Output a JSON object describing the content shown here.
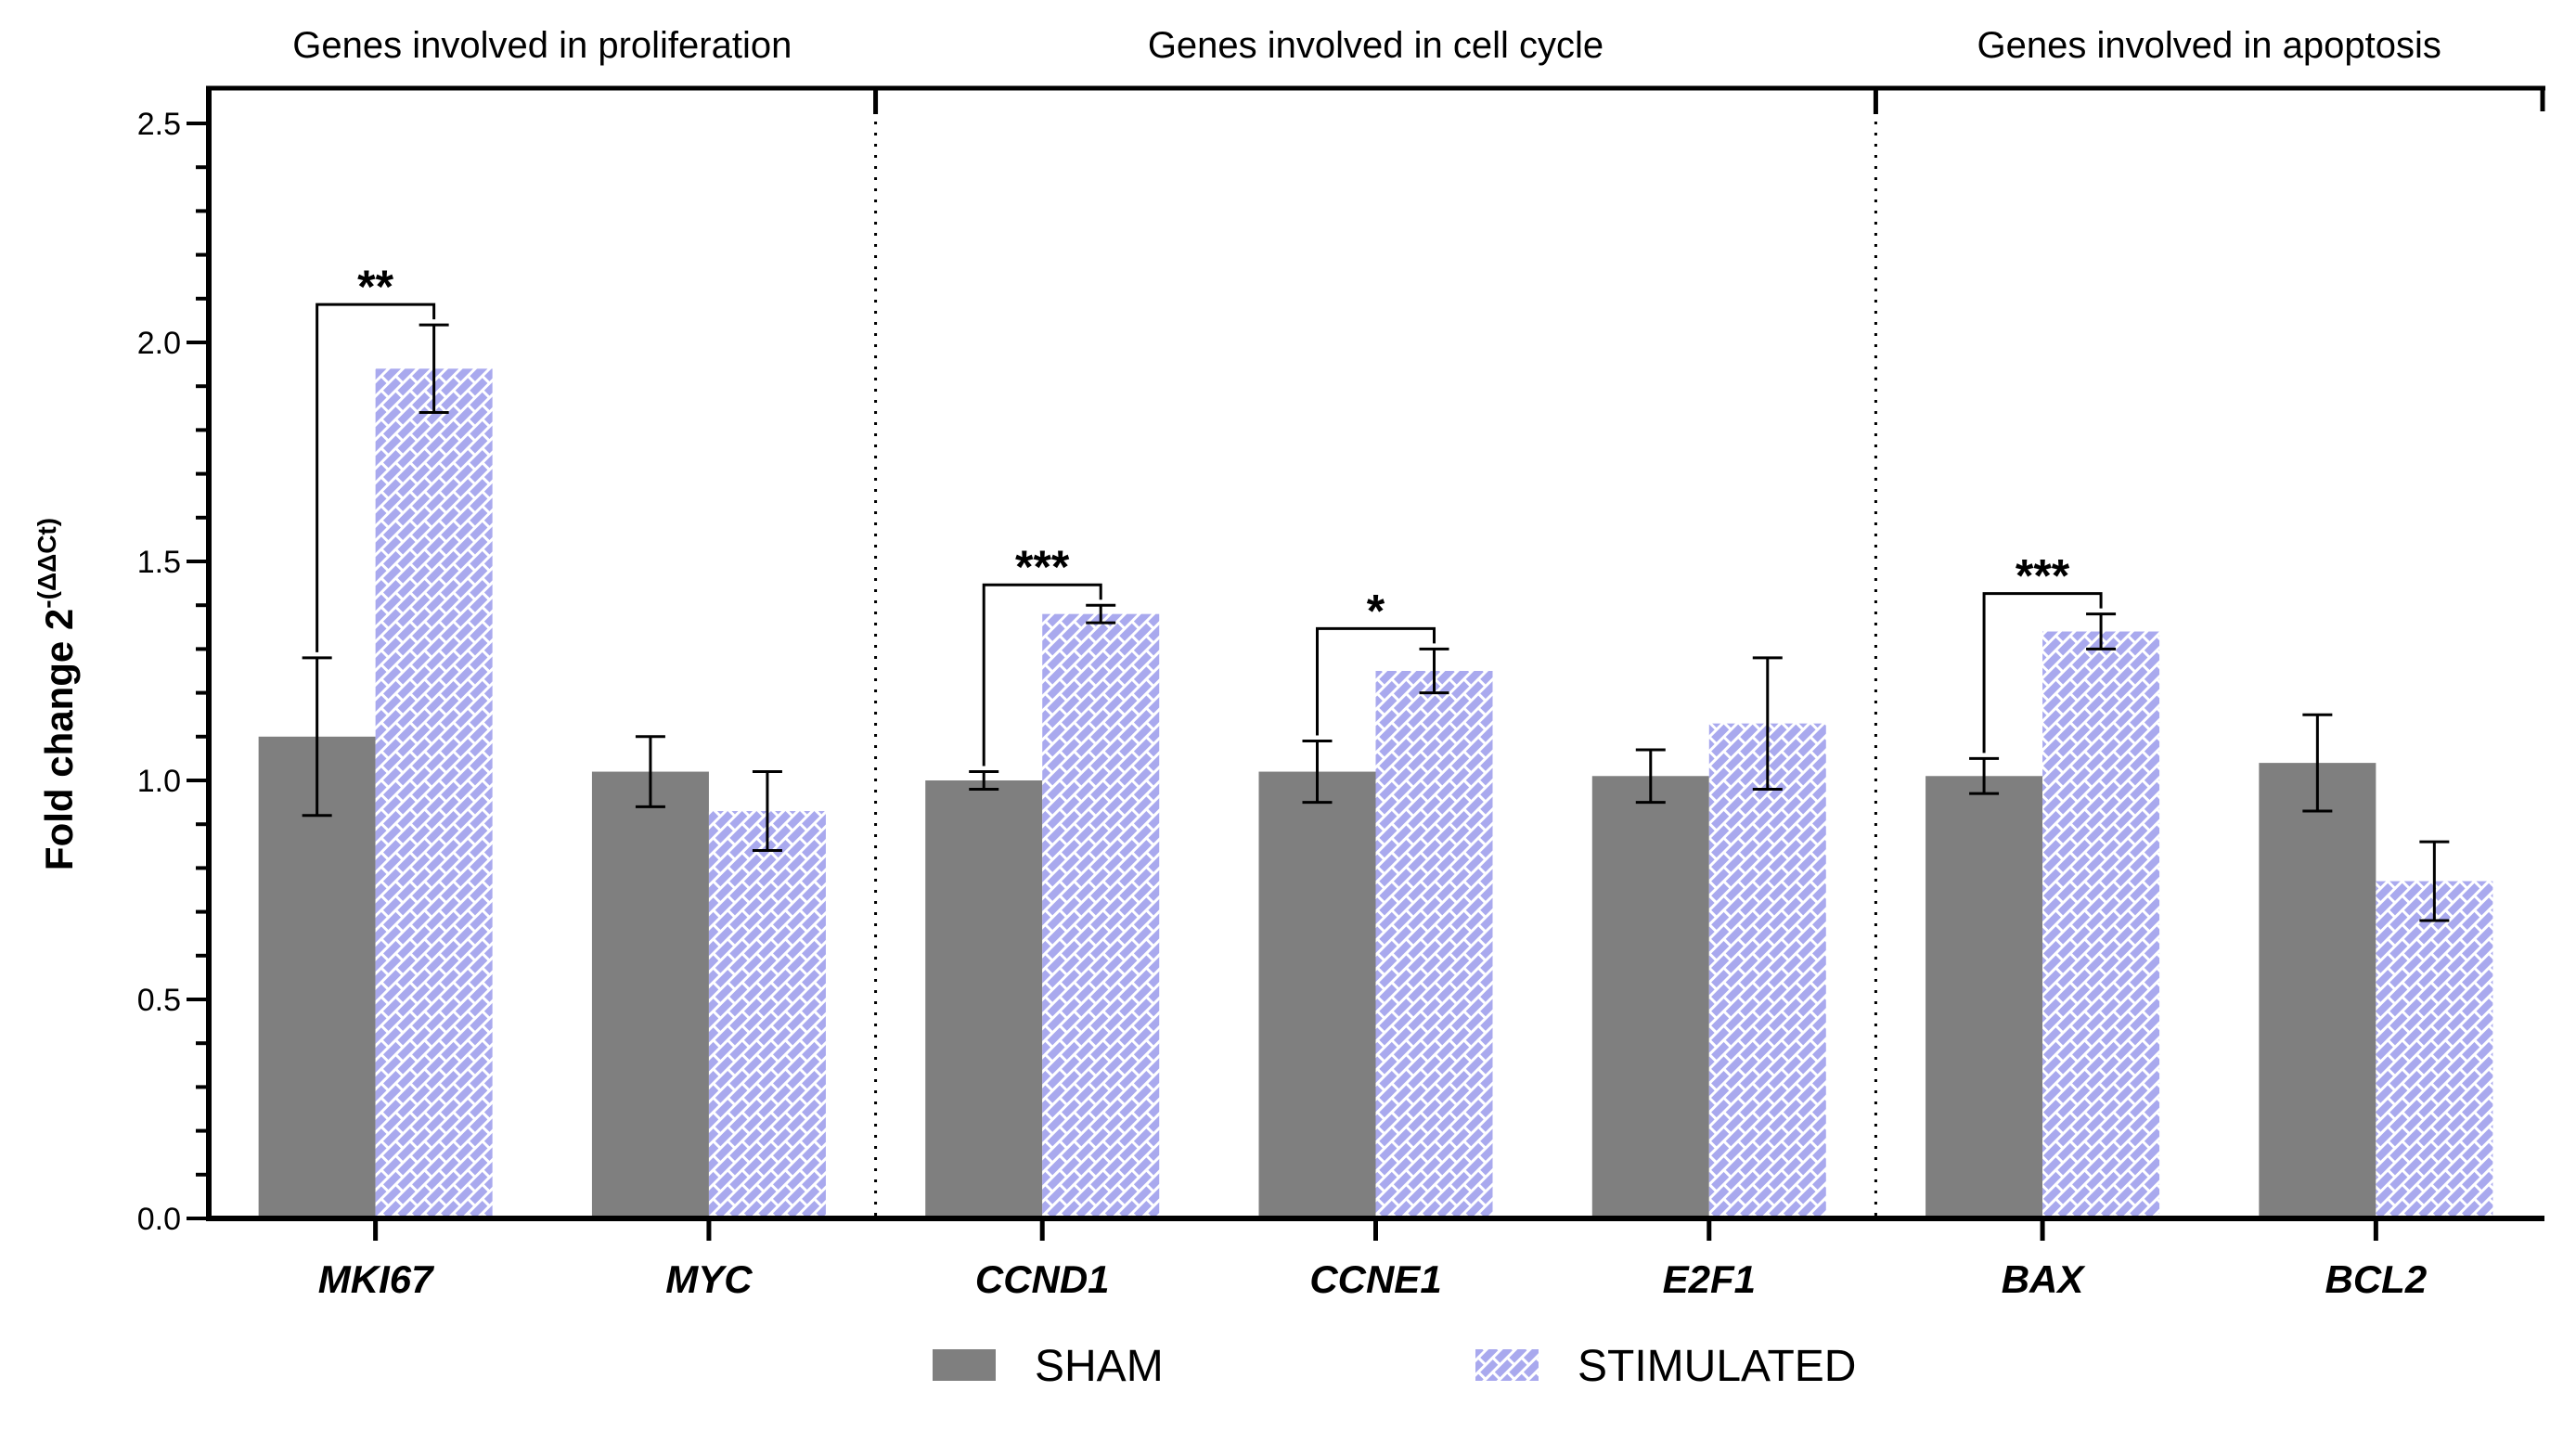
{
  "chart_data": {
    "type": "bar",
    "ylabel": "Fold change 2",
    "ylabel_superscript": "-(ΔΔCt)",
    "ylim": [
      0,
      2.5
    ],
    "yticks": [
      0.0,
      0.5,
      1.0,
      1.5,
      2.0,
      2.5
    ],
    "ytick_labels": [
      "0.0",
      "0.5",
      "1.0",
      "1.5",
      "2.0",
      "2.5"
    ],
    "categories": [
      "MKI67",
      "MYC",
      "CCND1",
      "CCNE1",
      "E2F1",
      "BAX",
      "BCL2"
    ],
    "groups": [
      {
        "label": "Genes involved in proliferation",
        "categories": [
          "MKI67",
          "MYC"
        ]
      },
      {
        "label": "Genes involved in cell cycle",
        "categories": [
          "CCND1",
          "CCNE1",
          "E2F1"
        ]
      },
      {
        "label": "Genes involved in apoptosis",
        "categories": [
          "BAX",
          "BCL2"
        ]
      }
    ],
    "series": [
      {
        "name": "SHAM",
        "color": "#7f7f7f",
        "pattern": "solid",
        "values": [
          1.1,
          1.02,
          1.0,
          1.02,
          1.01,
          1.01,
          1.04
        ],
        "errors": [
          0.18,
          0.08,
          0.02,
          0.07,
          0.06,
          0.04,
          0.11
        ]
      },
      {
        "name": "STIMULATED",
        "color": "#a9a9ee",
        "pattern": "brick",
        "values": [
          1.94,
          0.93,
          1.38,
          1.25,
          1.13,
          1.34,
          0.77
        ],
        "errors": [
          0.1,
          0.09,
          0.02,
          0.05,
          0.15,
          0.04,
          0.09
        ]
      }
    ],
    "significance": [
      {
        "category": "MKI67",
        "label": "**"
      },
      {
        "category": "CCND1",
        "label": "***"
      },
      {
        "category": "CCNE1",
        "label": "*"
      },
      {
        "category": "BAX",
        "label": "***"
      }
    ],
    "legend": [
      "SHAM",
      "STIMULATED"
    ],
    "legend_position": "bottom-center",
    "grid": false
  }
}
